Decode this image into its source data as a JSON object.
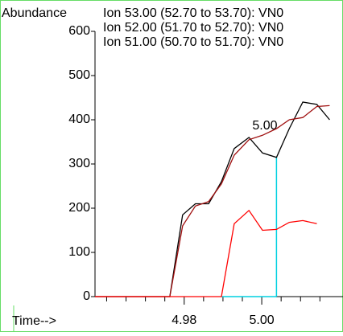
{
  "chart_data": {
    "type": "line",
    "ylabel": "Abundance",
    "xlabel": "Time-->",
    "annotation": "5.00",
    "x": [
      4.957,
      4.9763,
      4.9796,
      4.9829,
      4.9863,
      4.9896,
      4.9929,
      4.9967,
      5.0002,
      5.0038,
      5.0071,
      5.0106,
      5.0142,
      5.0175
    ],
    "series": [
      {
        "name": "Ion  53.00 (52.70 to 53.70): VN0",
        "color": "#000000",
        "values": [
          0,
          0,
          185,
          210,
          210,
          260,
          335,
          360,
          325,
          315,
          380,
          440,
          435,
          400
        ]
      },
      {
        "name": "Ion  52.00 (51.70 to 52.70): VN0",
        "color": "#a01010",
        "values": [
          0,
          0,
          160,
          205,
          215,
          255,
          320,
          355,
          365,
          380,
          400,
          405,
          430,
          432
        ]
      },
      {
        "name": "Ion  51.00 (50.70 to 51.70): VN0",
        "color": "#ff0000",
        "values": [
          0,
          0,
          0,
          0,
          0,
          0,
          165,
          195,
          150,
          152,
          168,
          172,
          165,
          null
        ]
      }
    ],
    "marker": {
      "x": 5.0038,
      "y": 315,
      "baseline_start": 4.9896,
      "color": "#00d0e0"
    },
    "xlim": [
      4.957,
      5.02
    ],
    "ylim": [
      0,
      600
    ],
    "xticks": [
      4.98,
      {
        "value": 5.0,
        "label": "5.00"
      }
    ],
    "xminor": [
      4.96,
      4.965,
      4.97,
      4.975,
      4.985,
      4.99,
      4.995,
      5.005,
      5.01,
      5.015
    ],
    "yticks": [
      0,
      100,
      200,
      300,
      400,
      500,
      600
    ]
  }
}
